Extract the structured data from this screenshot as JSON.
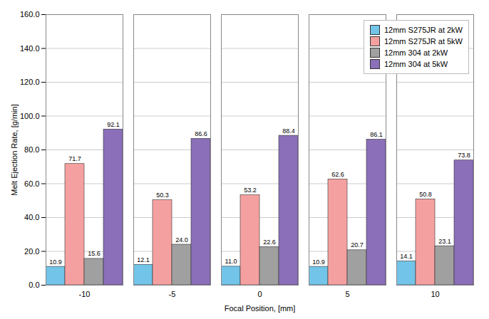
{
  "chart_data": {
    "type": "bar",
    "xlabel": "Focal Position, [mm]",
    "ylabel": "Melt Ejection Rate, [g/min]",
    "categories": [
      "-10",
      "-5",
      "0",
      "5",
      "10"
    ],
    "series": [
      {
        "name": "12mm S275JR at 2kW",
        "color": "#72C4E8",
        "values": [
          10.9,
          12.1,
          11.0,
          10.9,
          14.1
        ],
        "value_labels": [
          "10.9",
          "12.1",
          "11.0",
          "10.9",
          "14.1"
        ]
      },
      {
        "name": "12mm S275JR at 5kW",
        "color": "#F5A0A0",
        "values": [
          71.7,
          50.3,
          53.2,
          62.6,
          50.8
        ],
        "value_labels": [
          "71.7",
          "50.3",
          "53.2",
          "62.6",
          "50.8"
        ]
      },
      {
        "name": "12mm 304 at 2kW",
        "color": "#A0A0A0",
        "values": [
          15.6,
          24.0,
          22.6,
          20.7,
          23.1
        ],
        "value_labels": [
          "15.6",
          "24.0",
          "22.6",
          "20.7",
          "23.1"
        ]
      },
      {
        "name": "12mm 304 at 5kW",
        "color": "#8B6FB8",
        "values": [
          92.1,
          86.6,
          88.4,
          86.1,
          73.8
        ],
        "value_labels": [
          "92.1",
          "86.6",
          "88.4",
          "86.1",
          "73.8"
        ]
      }
    ],
    "ylim": [
      0,
      160
    ],
    "yticks": [
      {
        "value": 0,
        "label": "0.0"
      },
      {
        "value": 20,
        "label": "20.0"
      },
      {
        "value": 40,
        "label": "40.0"
      },
      {
        "value": 60,
        "label": "60.0"
      },
      {
        "value": 80,
        "label": "80.0"
      },
      {
        "value": 100,
        "label": "100.0"
      },
      {
        "value": 120,
        "label": "120.0"
      },
      {
        "value": 140,
        "label": "140.0"
      },
      {
        "value": 160,
        "label": "160.0"
      }
    ],
    "grid": true,
    "legend": "upper right",
    "data_labels": true
  }
}
